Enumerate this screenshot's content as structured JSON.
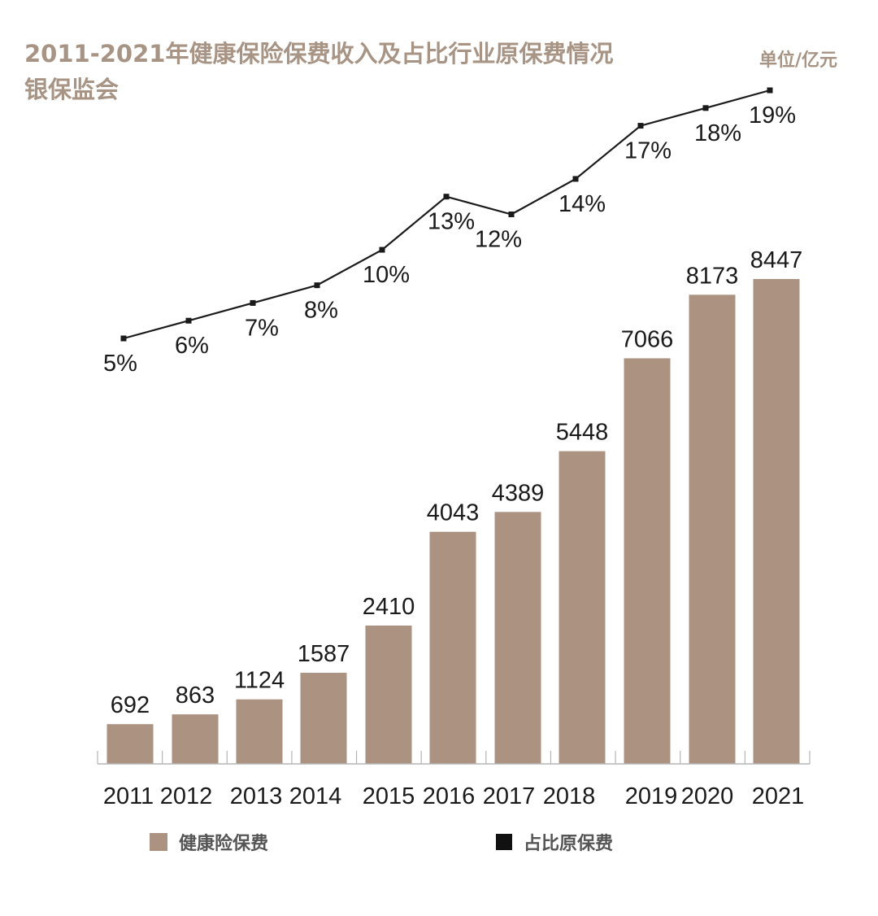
{
  "header": {
    "title_line1": "2011-2021年健康保险保费收入及占比行业原保费情况",
    "title_line2": "银保监会",
    "unit": "单位/亿元"
  },
  "legend": {
    "bar_label": "健康险保费",
    "line_label": "占比原保费"
  },
  "colors": {
    "bar": "#ab9281",
    "line": "#1a1a1a",
    "title": "#a89484",
    "legend_text": "#555555"
  },
  "chart_data": {
    "type": "bar+line",
    "categories": [
      "2011",
      "2012",
      "2013",
      "2014",
      "2015",
      "2016",
      "2017",
      "2018",
      "2019",
      "2020",
      "2021"
    ],
    "series": [
      {
        "name": "健康险保费",
        "type": "bar",
        "values": [
          692,
          863,
          1124,
          1587,
          2410,
          4043,
          4389,
          5448,
          7066,
          8173,
          8447
        ]
      },
      {
        "name": "占比原保费",
        "type": "line",
        "values": [
          5,
          6,
          7,
          8,
          10,
          13,
          12,
          14,
          17,
          18,
          19
        ],
        "labels": [
          "5%",
          "6%",
          "7%",
          "8%",
          "10%",
          "13%",
          "12%",
          "14%",
          "17%",
          "18%",
          "19%"
        ]
      }
    ],
    "bar_ylim": [
      0,
      8447
    ],
    "line_ylim": [
      5,
      19
    ],
    "grid": false,
    "legend_position": "bottom"
  }
}
